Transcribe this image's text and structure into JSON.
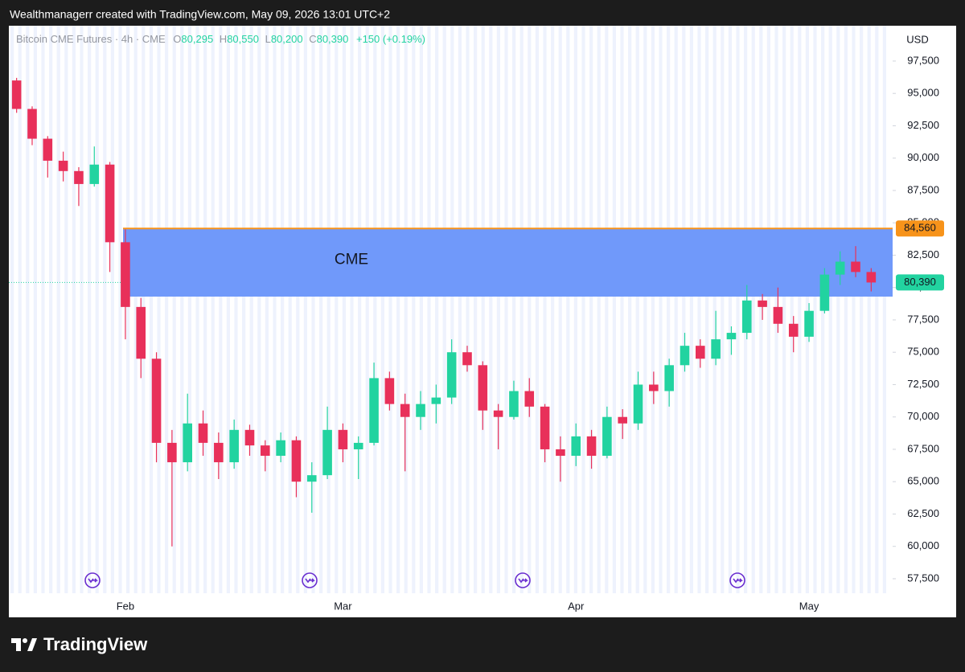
{
  "chart_data": {
    "type": "candlestick",
    "header": "Wealthmanagerr created with TradingView.com, May 09, 2026 13:01 UTC+2",
    "legend": {
      "symbol": "Bitcoin CME Futures · 4h · CME",
      "ohlc": [
        {
          "key": "O",
          "text": "80,295"
        },
        {
          "key": "H",
          "text": "80,550"
        },
        {
          "key": "L",
          "text": "80,200"
        },
        {
          "key": "C",
          "text": "80,390"
        }
      ],
      "change": "+150 (+0.19%)"
    },
    "currency": "USD",
    "brand": "TradingView",
    "up_color": "#22d3a0",
    "down_color": "#e8305a",
    "categories": [
      null,
      null,
      null,
      null,
      null,
      null,
      null,
      "Feb",
      null,
      null,
      null,
      null,
      null,
      null,
      null,
      null,
      null,
      null,
      null,
      null,
      null,
      "Mar",
      null,
      null,
      null,
      null,
      null,
      null,
      null,
      null,
      null,
      null,
      null,
      null,
      null,
      null,
      "Apr",
      null,
      null,
      null,
      null,
      null,
      null,
      null,
      null,
      null,
      null,
      null,
      null,
      null,
      null,
      "May",
      null,
      null,
      null,
      null
    ],
    "open": [
      96000,
      93800,
      91500,
      89800,
      89000,
      88000,
      89500,
      83500,
      78500,
      74500,
      68000,
      66500,
      69500,
      68000,
      66500,
      69000,
      67800,
      67000,
      68200,
      65000,
      65500,
      69000,
      67500,
      68000,
      73000,
      71000,
      70000,
      71000,
      71500,
      75000,
      74000,
      70500,
      70000,
      72000,
      70800,
      67500,
      67000,
      68500,
      67000,
      70000,
      69500,
      72500,
      72000,
      74000,
      75500,
      74500,
      76000,
      76500,
      79000,
      78500,
      77200,
      76200,
      78200,
      81000,
      82000,
      81200
    ],
    "high": [
      96200,
      94000,
      91700,
      90500,
      89300,
      90900,
      89700,
      84500,
      79200,
      75000,
      69000,
      71800,
      70500,
      68800,
      69800,
      69400,
      68200,
      68800,
      68500,
      66500,
      70800,
      69500,
      68500,
      74200,
      73500,
      71800,
      72000,
      72500,
      76000,
      75500,
      74300,
      71000,
      72800,
      73000,
      71000,
      68500,
      69500,
      69000,
      70800,
      70600,
      73500,
      73500,
      74500,
      76500,
      76000,
      78200,
      77000,
      80200,
      79500,
      80000,
      77800,
      78800,
      81500,
      82800,
      83200,
      81500
    ],
    "low": [
      93500,
      91000,
      88500,
      88200,
      86300,
      87800,
      81200,
      76000,
      73000,
      66500,
      60000,
      65800,
      67000,
      65200,
      66000,
      67000,
      65800,
      66500,
      63800,
      62600,
      65200,
      66500,
      65200,
      67800,
      70500,
      65800,
      69000,
      69500,
      71000,
      73500,
      69000,
      67500,
      69800,
      70000,
      66500,
      65000,
      66200,
      66000,
      66800,
      68300,
      69000,
      71000,
      70800,
      73500,
      73800,
      74000,
      74800,
      76000,
      77500,
      76500,
      75000,
      75800,
      78000,
      80200,
      80800,
      79700
    ],
    "close": [
      93800,
      91500,
      89800,
      89000,
      88000,
      89500,
      83500,
      78500,
      74500,
      68000,
      66500,
      69500,
      68000,
      66500,
      69000,
      67800,
      67000,
      68200,
      65000,
      65500,
      69000,
      67500,
      68000,
      73000,
      71000,
      70000,
      71000,
      71500,
      75000,
      74000,
      70500,
      70000,
      72000,
      70800,
      67500,
      67000,
      68500,
      67000,
      70000,
      69500,
      72500,
      72000,
      74000,
      75500,
      74500,
      76000,
      76500,
      79000,
      78500,
      77200,
      76200,
      78200,
      81000,
      82000,
      81200,
      80390
    ],
    "ylim": [
      56380,
      100230
    ],
    "yticks": [
      {
        "value": 57500,
        "label": "57,500"
      },
      {
        "value": 60000,
        "label": "60,000"
      },
      {
        "value": 62500,
        "label": "62,500"
      },
      {
        "value": 65000,
        "label": "65,000"
      },
      {
        "value": 67500,
        "label": "67,500"
      },
      {
        "value": 70000,
        "label": "70,000"
      },
      {
        "value": 72500,
        "label": "72,500"
      },
      {
        "value": 75000,
        "label": "75,000"
      },
      {
        "value": 77500,
        "label": "77,500"
      },
      {
        "value": 80000,
        "label": "80,000"
      },
      {
        "value": 82500,
        "label": "82,500"
      },
      {
        "value": 85000,
        "label": "85,000"
      },
      {
        "value": 87500,
        "label": "87,500"
      },
      {
        "value": 90000,
        "label": "90,000"
      },
      {
        "value": 92500,
        "label": "92,500"
      },
      {
        "value": 95000,
        "label": "95,000"
      },
      {
        "value": 97500,
        "label": "97,500"
      }
    ],
    "zone": {
      "label": "CME",
      "color": "#6b96fa",
      "line_color": "#f7931a",
      "top": {
        "value": 84560,
        "label": "84,560"
      },
      "bottom": 79300
    },
    "last_price": {
      "value": 80390,
      "label": "80,390"
    }
  }
}
